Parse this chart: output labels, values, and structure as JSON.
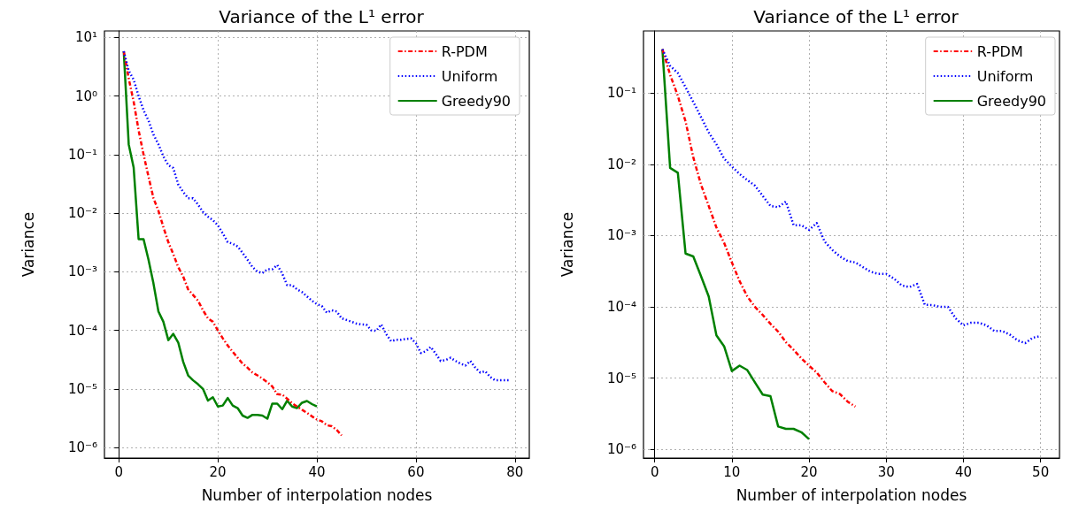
{
  "chart_data": [
    {
      "type": "line",
      "title": "Variance of the L¹ error",
      "xlabel": "Number of interpolation nodes",
      "ylabel": "Variance",
      "log": "y",
      "grid": true,
      "legend": "top right",
      "marker": "none",
      "xlim": [
        -2.9,
        82.9
      ],
      "xticks": [
        0,
        20,
        40,
        60,
        80
      ],
      "ylim": [
        6.6e-07,
        12.9
      ],
      "yticks": [
        {
          "value": 1e-06,
          "label": "10⁻⁶"
        },
        {
          "value": 1e-05,
          "label": "10⁻⁵"
        },
        {
          "value": 0.0001,
          "label": "10⁻⁴"
        },
        {
          "value": 0.001,
          "label": "10⁻³"
        },
        {
          "value": 0.01,
          "label": "10⁻²"
        },
        {
          "value": 0.1,
          "label": "10⁻¹"
        },
        {
          "value": 1,
          "label": "10⁰"
        },
        {
          "value": 10,
          "label": "10¹"
        }
      ],
      "series": [
        {
          "name": "R-PDM",
          "color": "#ff0000",
          "line_style": "dashdot",
          "x": [
            1,
            2,
            3,
            4,
            5,
            6,
            7,
            8,
            9,
            10,
            11,
            12,
            13,
            14,
            15,
            16,
            17,
            18,
            19,
            20,
            21,
            22,
            23,
            24,
            25,
            26,
            27,
            28,
            29,
            30,
            31,
            32,
            33,
            34,
            35,
            36,
            37,
            38,
            39,
            40,
            41,
            42,
            43,
            44,
            45
          ],
          "values": [
            5.8,
            2,
            0.8,
            0.26,
            0.1,
            0.042,
            0.018,
            0.011,
            0.0058,
            0.0032,
            0.002,
            0.0012,
            0.00083,
            0.0005,
            0.0004,
            0.00032,
            0.00022,
            0.00016,
            0.00014,
            0.0001,
            7.3e-05,
            5.5e-05,
            4.3e-05,
            3.4e-05,
            2.7e-05,
            2.3e-05,
            1.9e-05,
            1.7e-05,
            1.5e-05,
            1.3e-05,
            1.1e-05,
            8.1e-06,
            8e-06,
            6.8e-06,
            5.7e-06,
            5e-06,
            4.4e-06,
            3.9e-06,
            3.4e-06,
            3e-06,
            2.8e-06,
            2.4e-06,
            2.3e-06,
            2e-06,
            1.6e-06
          ]
        },
        {
          "name": "Uniform",
          "color": "#0000ff",
          "line_style": "dotted",
          "x": [
            1,
            2,
            3,
            4,
            5,
            6,
            7,
            8,
            9,
            10,
            11,
            12,
            13,
            14,
            15,
            16,
            17,
            18,
            19,
            20,
            21,
            22,
            23,
            24,
            25,
            26,
            27,
            28,
            29,
            30,
            31,
            32,
            33,
            34,
            35,
            36,
            37,
            38,
            39,
            40,
            41,
            42,
            43,
            44,
            45,
            46,
            47,
            48,
            49,
            50,
            51,
            52,
            53,
            54,
            55,
            56,
            57,
            58,
            59,
            60,
            61,
            62,
            63,
            64,
            65,
            66,
            67,
            68,
            69,
            70,
            71,
            72,
            73,
            74,
            75,
            76,
            77,
            78,
            79
          ],
          "values": [
            5.8,
            2.7,
            1.9,
            1.0,
            0.57,
            0.38,
            0.22,
            0.15,
            0.093,
            0.066,
            0.059,
            0.031,
            0.023,
            0.018,
            0.018,
            0.014,
            0.0105,
            0.0087,
            0.0076,
            0.0062,
            0.0045,
            0.0032,
            0.003,
            0.0027,
            0.0021,
            0.0016,
            0.0012,
            0.001,
            0.00095,
            0.0011,
            0.0011,
            0.0013,
            0.00093,
            0.00059,
            0.00059,
            0.0005,
            0.00045,
            0.00038,
            0.00032,
            0.00028,
            0.00026,
            0.0002,
            0.00022,
            0.00021,
            0.00016,
            0.00015,
            0.00014,
            0.00013,
            0.000126,
            0.000125,
            0.0001,
            9.8e-05,
            0.000126,
            8.6e-05,
            6.5e-05,
            6.9e-05,
            6.9e-05,
            7.1e-05,
            7.3e-05,
            6e-05,
            4.1e-05,
            4.4e-05,
            5.2e-05,
            4e-05,
            3e-05,
            3.1e-05,
            3.4e-05,
            3e-05,
            2.7e-05,
            2.5e-05,
            3e-05,
            2.3e-05,
            1.9e-05,
            2e-05,
            1.6e-05,
            1.4e-05,
            1.4e-05,
            1.4e-05,
            1.4e-05
          ]
        },
        {
          "name": "Greedy90",
          "color": "#008000",
          "line_style": "solid",
          "x": [
            1,
            2,
            3,
            4,
            5,
            6,
            7,
            8,
            9,
            10,
            11,
            12,
            13,
            14,
            15,
            16,
            17,
            18,
            19,
            20,
            21,
            22,
            23,
            24,
            25,
            26,
            27,
            28,
            29,
            30,
            31,
            32,
            33,
            34,
            35,
            36,
            37,
            38,
            39,
            40
          ],
          "values": [
            5.8,
            0.15,
            0.06,
            0.0036,
            0.0036,
            0.0016,
            0.00063,
            0.00021,
            0.00014,
            6.8e-05,
            8.7e-05,
            6.2e-05,
            2.9e-05,
            1.7e-05,
            1.4e-05,
            1.2e-05,
            1e-05,
            6.3e-06,
            7.2e-06,
            5e-06,
            5.2e-06,
            7e-06,
            5.2e-06,
            4.7e-06,
            3.5e-06,
            3.2e-06,
            3.6e-06,
            3.6e-06,
            3.5e-06,
            3.1e-06,
            5.6e-06,
            5.6e-06,
            4.5e-06,
            6.3e-06,
            5e-06,
            4.7e-06,
            5.8e-06,
            6.2e-06,
            5.5e-06,
            5e-06
          ]
        }
      ]
    },
    {
      "type": "line",
      "title": "Variance of the L¹ error",
      "xlabel": "Number of interpolation nodes",
      "ylabel": "Variance",
      "log": "y",
      "grid": true,
      "legend": "top right",
      "marker": "none",
      "xlim": [
        -1.45,
        52.45
      ],
      "xticks": [
        0,
        10,
        20,
        30,
        40,
        50
      ],
      "ylim": [
        7.6e-07,
        0.74
      ],
      "yticks": [
        {
          "value": 1e-06,
          "label": "10⁻⁶"
        },
        {
          "value": 1e-05,
          "label": "10⁻⁵"
        },
        {
          "value": 0.0001,
          "label": "10⁻⁴"
        },
        {
          "value": 0.001,
          "label": "10⁻³"
        },
        {
          "value": 0.01,
          "label": "10⁻²"
        },
        {
          "value": 0.1,
          "label": "10⁻¹"
        }
      ],
      "series": [
        {
          "name": "R-PDM",
          "color": "#ff0000",
          "line_style": "dashdot",
          "x": [
            1,
            2,
            3,
            4,
            5,
            6,
            7,
            8,
            9,
            10,
            11,
            12,
            13,
            14,
            15,
            16,
            17,
            18,
            19,
            20,
            21,
            22,
            23,
            24,
            25,
            26
          ],
          "values": [
            0.41,
            0.18,
            0.091,
            0.04,
            0.0125,
            0.0052,
            0.0026,
            0.0013,
            0.00079,
            0.00042,
            0.00023,
            0.00014,
            0.0001,
            7.7e-05,
            5.8e-05,
            4.5e-05,
            3.2e-05,
            2.5e-05,
            1.9e-05,
            1.5e-05,
            1.2e-05,
            8.8e-06,
            6.6e-06,
            6e-06,
            4.7e-06,
            4e-06
          ]
        },
        {
          "name": "Uniform",
          "color": "#0000ff",
          "line_style": "dotted",
          "x": [
            1,
            2,
            3,
            4,
            5,
            6,
            7,
            8,
            9,
            10,
            11,
            12,
            13,
            14,
            15,
            16,
            17,
            18,
            19,
            20,
            21,
            22,
            23,
            24,
            25,
            26,
            27,
            28,
            29,
            30,
            31,
            32,
            33,
            34,
            35,
            36,
            37,
            38,
            39,
            40,
            41,
            42,
            43,
            44,
            45,
            46,
            47,
            48,
            49,
            50
          ],
          "values": [
            0.41,
            0.24,
            0.19,
            0.12,
            0.075,
            0.046,
            0.028,
            0.019,
            0.012,
            0.0093,
            0.0073,
            0.006,
            0.005,
            0.0036,
            0.0026,
            0.0025,
            0.003,
            0.0014,
            0.0014,
            0.0012,
            0.0015,
            0.00083,
            0.00063,
            0.00051,
            0.00044,
            0.00042,
            0.00036,
            0.00031,
            0.00029,
            0.00029,
            0.00025,
            0.0002,
            0.00019,
            0.00021,
            0.000107,
            0.000106,
            0.0001,
            0.0001,
            6.9e-05,
            5.5e-05,
            6e-05,
            6e-05,
            5.5e-05,
            4.6e-05,
            4.6e-05,
            4.1e-05,
            3.4e-05,
            3.1e-05,
            3.7e-05,
            3.9e-05
          ]
        },
        {
          "name": "Greedy90",
          "color": "#008000",
          "line_style": "solid",
          "x": [
            1,
            2,
            3,
            4,
            5,
            6,
            7,
            8,
            9,
            10,
            11,
            12,
            13,
            14,
            15,
            16,
            17,
            18,
            19,
            20
          ],
          "values": [
            0.41,
            0.0089,
            0.0076,
            0.00056,
            0.00051,
            0.00027,
            0.00014,
            4e-05,
            2.8e-05,
            1.26e-05,
            1.5e-05,
            1.3e-05,
            8.7e-06,
            5.9e-06,
            5.6e-06,
            2.1e-06,
            1.95e-06,
            1.95e-06,
            1.75e-06,
            1.4e-06
          ]
        }
      ]
    }
  ]
}
